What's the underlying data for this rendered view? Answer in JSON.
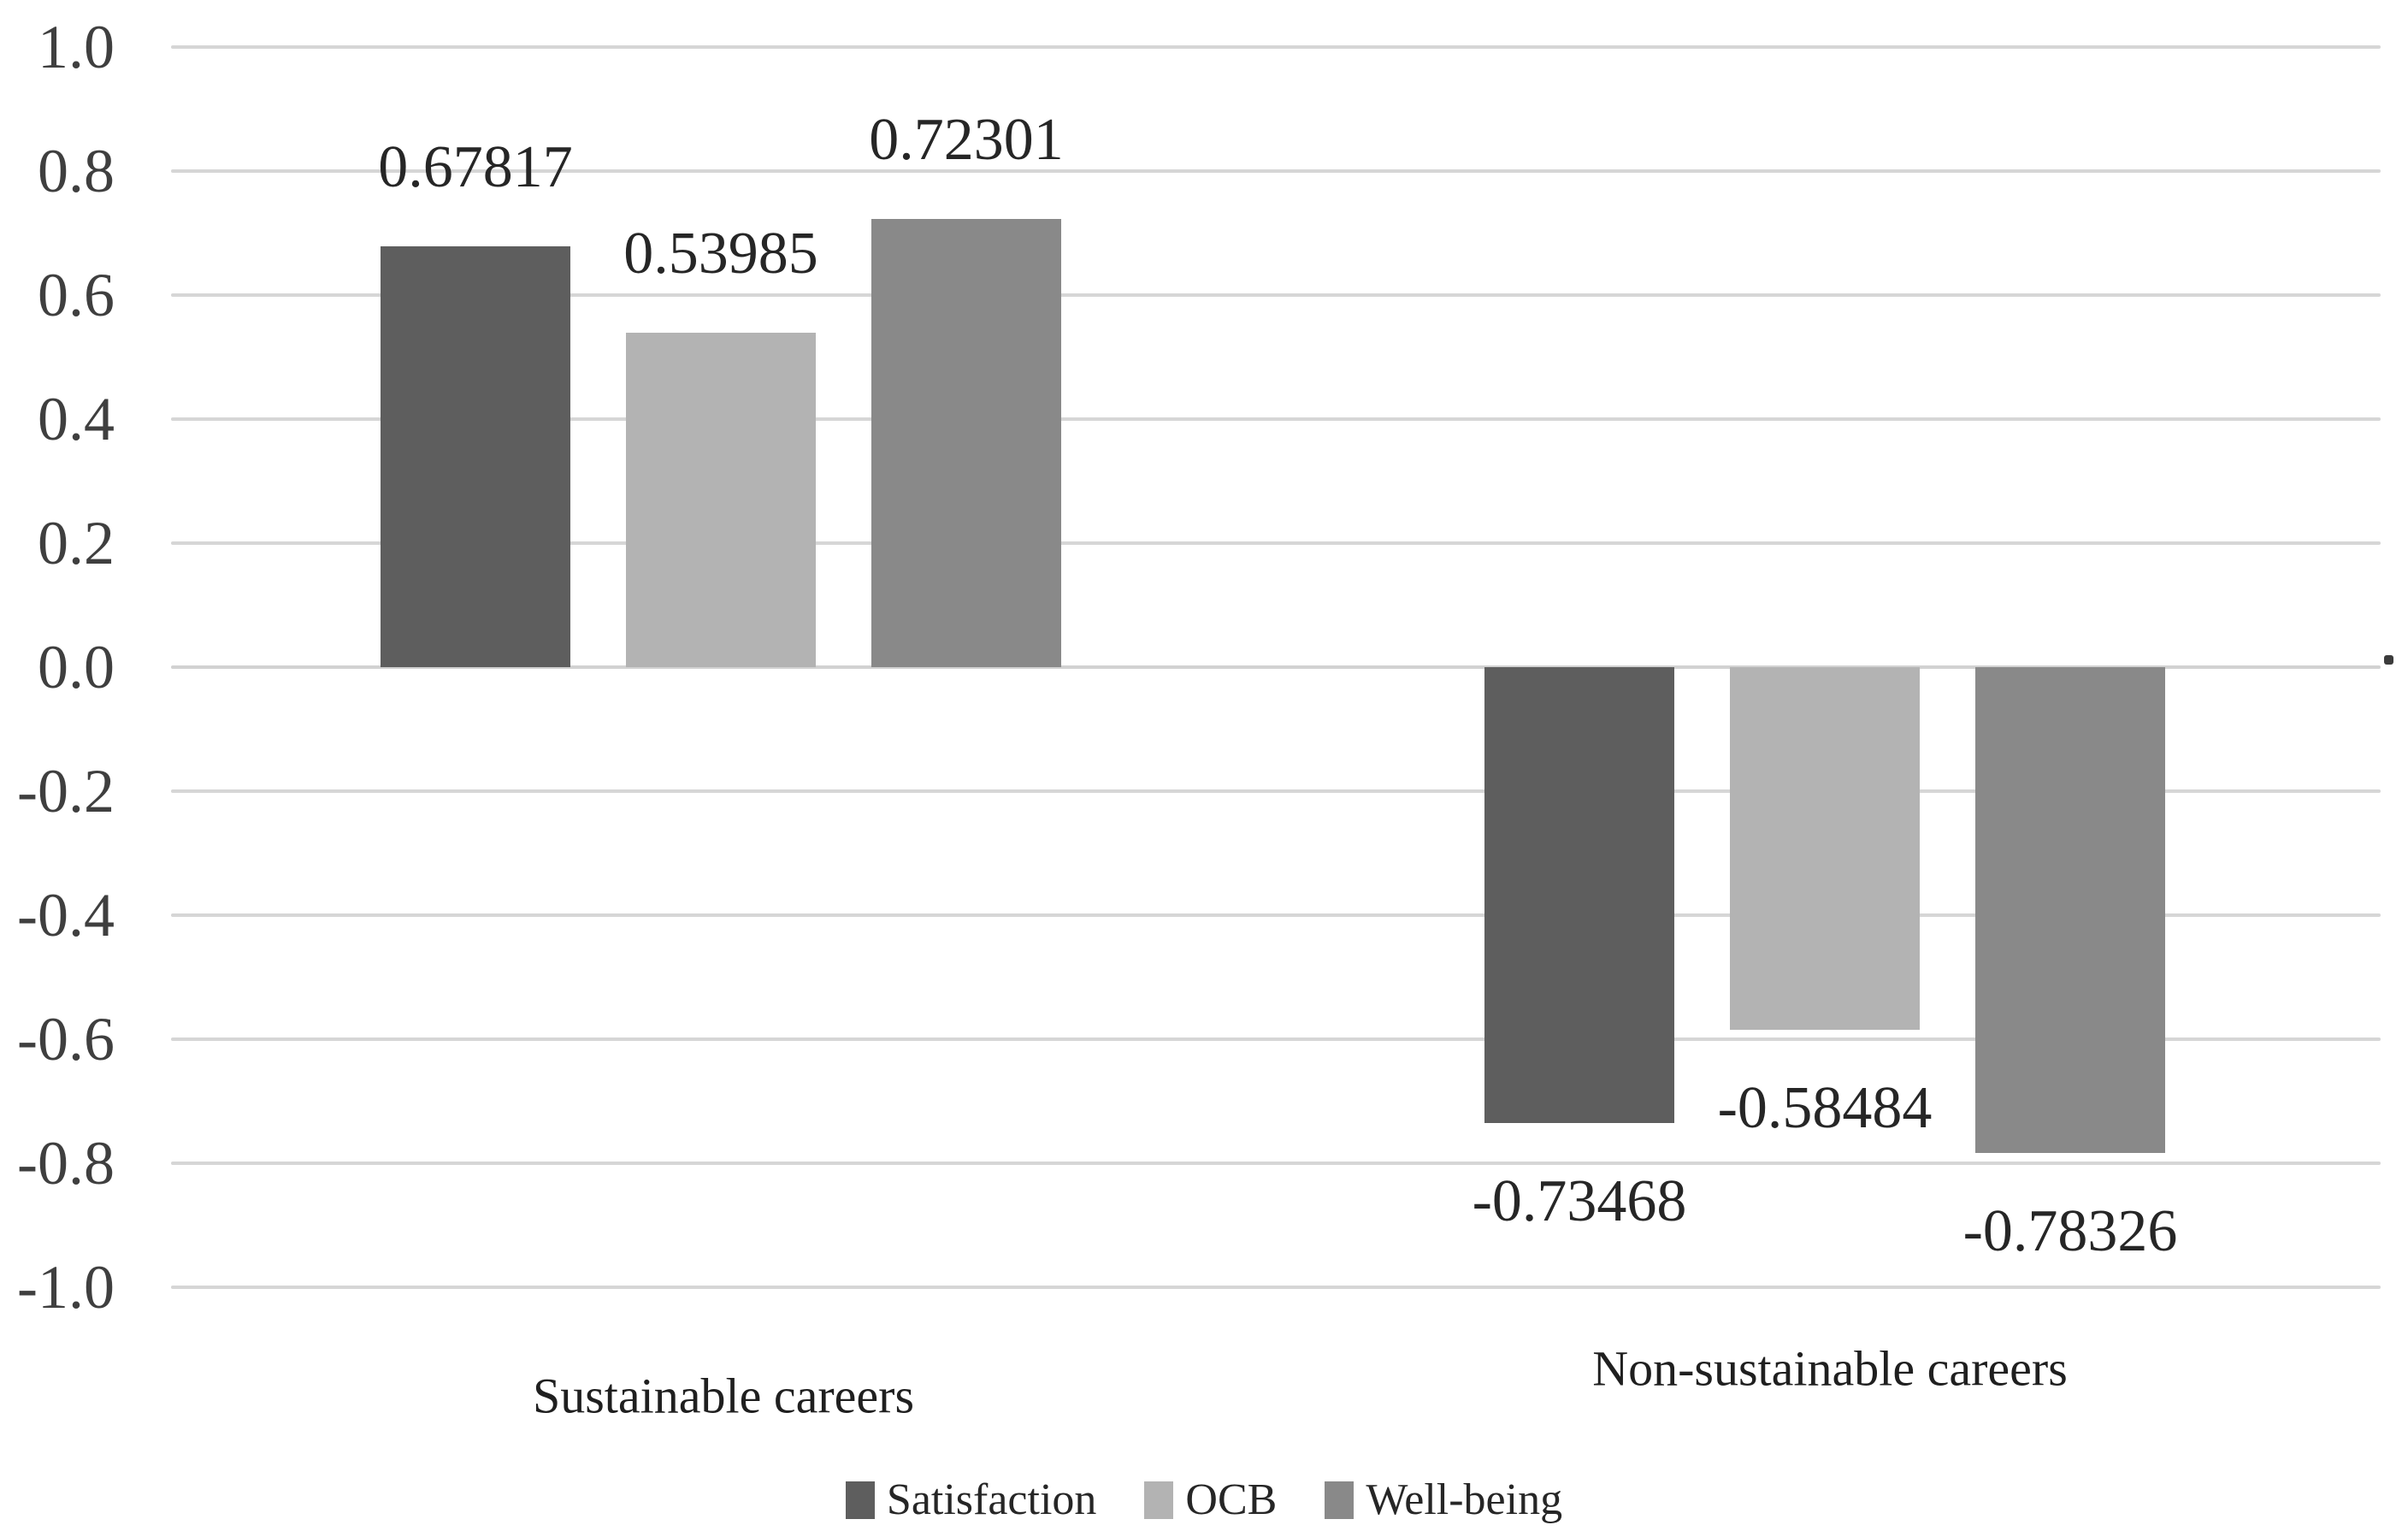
{
  "chart_data": {
    "type": "bar",
    "title": "",
    "categories": [
      "Sustainable careers",
      "Non-sustainable careers"
    ],
    "series": [
      {
        "name": "Satisfaction",
        "color": "#5e5e5e",
        "values": [
          0.67817,
          -0.73468
        ],
        "data_labels": [
          "0.67817",
          "-0.73468"
        ]
      },
      {
        "name": "OCB",
        "color": "#b3b3b3",
        "values": [
          0.53985,
          -0.58484
        ],
        "data_labels": [
          "0.53985",
          "-0.58484"
        ]
      },
      {
        "name": "Well-being",
        "color": "#898989",
        "values": [
          0.72301,
          -0.78326
        ],
        "data_labels": [
          "0.72301",
          "-0.78326"
        ]
      }
    ],
    "ylim": [
      -1.0,
      1.0
    ],
    "ytick_step": 0.2,
    "yticks": [
      1.0,
      0.8,
      0.6,
      0.4,
      0.2,
      0.0,
      -0.2,
      -0.4,
      -0.6,
      -0.8,
      -1.0
    ],
    "ytick_labels": [
      "1.0",
      "0.8",
      "0.6",
      "0.4",
      "0.2",
      "0.0",
      "-0.2",
      "-0.4",
      "-0.6",
      "-0.8",
      "-1.0"
    ],
    "grid": true,
    "legend_position": "bottom",
    "colors": {
      "gridline": "#d6d6d6",
      "zero_line": "#d2d2d2",
      "tick_text": "#3f3f3f",
      "value_label_text": "#262626",
      "category_text": "#1f1f1f",
      "background": "#ffffff"
    }
  }
}
